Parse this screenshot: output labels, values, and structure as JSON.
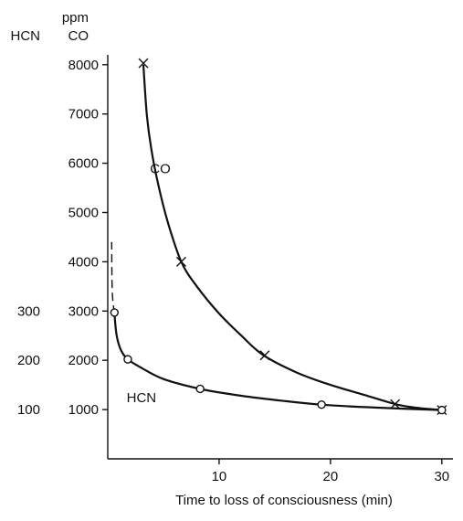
{
  "chart_data": {
    "type": "line",
    "xlabel": "Time to loss of consciousness (min)",
    "ylabel_primary_unit": "ppm",
    "ylabel_primary": "CO",
    "ylabel_secondary": "HCN",
    "xlim": [
      0,
      31
    ],
    "ylim": [
      0,
      8200
    ],
    "x_ticks": [
      10,
      20,
      30
    ],
    "y_ticks": [
      1000,
      2000,
      3000,
      4000,
      5000,
      6000,
      7000,
      8000
    ],
    "secondary_ticks": [
      {
        "label": "100",
        "at": 1000
      },
      {
        "label": "200",
        "at": 2000
      },
      {
        "label": "300",
        "at": 3000
      }
    ],
    "series": [
      {
        "name": "CO",
        "marker": "cross",
        "curve": [
          [
            3.2,
            8000
          ],
          [
            3.5,
            7000
          ],
          [
            3.9,
            6300
          ],
          [
            4.5,
            5600
          ],
          [
            5.4,
            4800
          ],
          [
            6.6,
            4000
          ],
          [
            8,
            3500
          ],
          [
            10,
            2950
          ],
          [
            12,
            2500
          ],
          [
            14,
            2100
          ],
          [
            17,
            1750
          ],
          [
            20,
            1500
          ],
          [
            23,
            1300
          ],
          [
            26,
            1100
          ],
          [
            28,
            1030
          ],
          [
            30,
            990
          ]
        ],
        "points": [
          [
            3.2,
            8030
          ],
          [
            6.6,
            4000
          ],
          [
            14.1,
            2100
          ],
          [
            25.8,
            1110
          ],
          [
            30,
            990
          ]
        ]
      },
      {
        "name": "HCN",
        "marker": "circle",
        "curve": [
          [
            0.6,
            2950
          ],
          [
            0.8,
            2500
          ],
          [
            1.2,
            2200
          ],
          [
            1.8,
            2020
          ],
          [
            3,
            1850
          ],
          [
            5,
            1620
          ],
          [
            8.3,
            1420
          ],
          [
            12,
            1280
          ],
          [
            16,
            1170
          ],
          [
            19.2,
            1100
          ],
          [
            24,
            1040
          ],
          [
            30,
            990
          ]
        ],
        "points": [
          [
            0.6,
            2970
          ],
          [
            1.8,
            2020
          ],
          [
            8.3,
            1420
          ],
          [
            19.2,
            1100
          ],
          [
            30,
            990
          ]
        ],
        "extrapolation": [
          [
            0.6,
            2950
          ],
          [
            0.4,
            3400
          ],
          [
            0.35,
            4400
          ]
        ]
      }
    ],
    "annotations": [
      {
        "text": "CO",
        "at": [
          3.3,
          5800
        ]
      },
      {
        "text": "HCN",
        "at": [
          1.2,
          1150
        ]
      }
    ]
  }
}
